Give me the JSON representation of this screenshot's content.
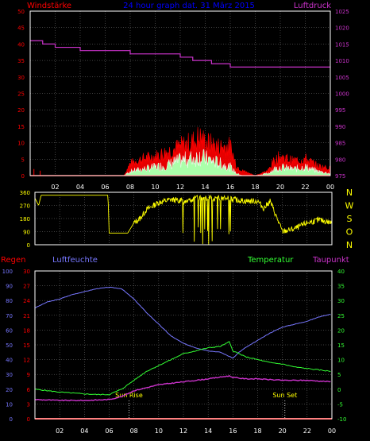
{
  "colors": {
    "background": "#000000",
    "frame": "#ffffff",
    "grid": "#808080",
    "wind": "#ff0000",
    "gust": "#ffffff",
    "wind_avg": "#aaffaa",
    "pressure": "#cc33cc",
    "direction": "#ffff00",
    "rain": "#ff0000",
    "humidity": "#7777ff",
    "temperature": "#33ff33",
    "dewpoint": "#cc33cc",
    "title": "#0000ff",
    "marker": "#ffff00"
  },
  "chart_data": [
    {
      "panel": "wind-pressure",
      "type": "line",
      "title": "24 hour graph dat. 31 März 2015",
      "left_label": "Windstärke",
      "right_label": "Luftdruck",
      "x_ticks": [
        "02",
        "04",
        "06",
        "08",
        "10",
        "12",
        "14",
        "16",
        "18",
        "20",
        "22",
        "00"
      ],
      "y_left": {
        "range": [
          0,
          50
        ],
        "ticks": [
          "0",
          "5",
          "10",
          "15",
          "20",
          "25",
          "30",
          "35",
          "40",
          "45",
          "50"
        ]
      },
      "y_right": {
        "range": [
          975,
          1025
        ],
        "ticks": [
          "975",
          "980",
          "985",
          "990",
          "995",
          "1000",
          "1005",
          "1010",
          "1015",
          "1020",
          "1025"
        ]
      },
      "pressure": {
        "x": [
          0,
          1,
          2,
          4,
          6,
          8,
          10,
          12,
          13,
          14,
          14.5,
          16,
          18,
          20,
          22,
          24
        ],
        "values": [
          1016,
          1015,
          1014,
          1013,
          1013,
          1012,
          1012,
          1011,
          1010,
          1010,
          1009,
          1008,
          1008,
          1008,
          1008,
          1008
        ]
      },
      "wind_envelope": {
        "x": [
          7.5,
          8,
          9,
          10,
          11,
          12,
          13,
          13.5,
          14,
          15,
          16,
          16.5,
          17,
          18,
          19,
          19.5,
          20,
          21,
          22,
          23,
          24
        ],
        "gust": [
          0,
          5,
          7,
          8,
          10,
          12,
          14,
          16,
          14,
          12,
          12,
          4,
          2,
          0,
          2,
          6,
          8,
          6,
          7,
          4,
          3
        ],
        "average": [
          0,
          2,
          3,
          4,
          5,
          7,
          8,
          9,
          8,
          6,
          4,
          1,
          0,
          0,
          1,
          3,
          4,
          3,
          4,
          2,
          1
        ]
      }
    },
    {
      "panel": "wind-direction",
      "type": "scatter",
      "x_ticks": [
        "02",
        "04",
        "06",
        "08",
        "10",
        "12",
        "14",
        "16",
        "18",
        "20",
        "22",
        "00"
      ],
      "y_left": {
        "range": [
          0,
          360
        ],
        "ticks": [
          "0",
          "90",
          "180",
          "270",
          "360"
        ]
      },
      "right_labels": [
        "N",
        "W",
        "S",
        "O",
        "N"
      ],
      "direction": {
        "x": [
          0,
          0.3,
          0.5,
          1,
          4,
          5.9,
          6,
          7.5,
          8,
          8.5,
          9,
          10,
          11,
          12,
          13,
          14,
          15,
          16,
          17,
          18,
          18.5,
          19,
          20,
          21,
          22,
          23,
          24
        ],
        "values": [
          320,
          270,
          340,
          340,
          340,
          340,
          80,
          80,
          150,
          180,
          240,
          290,
          310,
          300,
          320,
          320,
          320,
          310,
          300,
          300,
          250,
          300,
          90,
          110,
          150,
          170,
          150
        ]
      }
    },
    {
      "panel": "temp-humidity",
      "type": "line",
      "labels": {
        "rain": "Regen",
        "humidity": "Luftfeuchte",
        "temperature": "Temperatur",
        "dewpoint": "Taupunkt"
      },
      "x_ticks": [
        "02",
        "04",
        "06",
        "08",
        "10",
        "12",
        "14",
        "16",
        "18",
        "20",
        "22",
        "00"
      ],
      "y_humidity": {
        "range": [
          0,
          100
        ],
        "ticks": [
          "0",
          "10",
          "20",
          "30",
          "40",
          "50",
          "60",
          "70",
          "80",
          "90",
          "100"
        ]
      },
      "y_rain": {
        "range": [
          0,
          30
        ],
        "ticks": [
          "0",
          "3",
          "6",
          "9",
          "12",
          "15",
          "18",
          "21",
          "24",
          "27",
          "30"
        ]
      },
      "y_temperature": {
        "range": [
          -10,
          40
        ],
        "ticks": [
          "-10",
          "-5",
          "0",
          "5",
          "10",
          "15",
          "20",
          "25",
          "30",
          "35",
          "40"
        ]
      },
      "humidity": {
        "x": [
          0,
          1,
          2,
          3,
          4,
          5,
          6,
          7,
          8,
          9,
          10,
          11,
          12,
          13,
          14,
          15,
          16,
          16.5,
          17,
          18,
          19,
          20,
          21,
          22,
          23,
          24
        ],
        "values": [
          75,
          79,
          81,
          84,
          86,
          88,
          89,
          88,
          81,
          72,
          64,
          56,
          51,
          48,
          46,
          45,
          41,
          45,
          48,
          53,
          58,
          62,
          64,
          66,
          69,
          71
        ]
      },
      "temperature": {
        "x": [
          0,
          1,
          2,
          3,
          4,
          5,
          6,
          7,
          8,
          9,
          10,
          11,
          12,
          13,
          14,
          15,
          15.7,
          16,
          17,
          18,
          19,
          20,
          21,
          22,
          23,
          24
        ],
        "values": [
          0,
          -0.5,
          -1,
          -1.3,
          -1.6,
          -1.8,
          -1.8,
          0,
          3,
          6,
          8,
          10,
          12,
          13,
          14,
          14.5,
          16,
          13,
          11,
          10,
          9,
          8.5,
          7.5,
          7,
          6.5,
          6
        ]
      },
      "dewpoint": {
        "x": [
          0,
          2,
          4,
          6,
          7,
          8,
          9,
          10,
          12,
          14,
          15.7,
          16,
          17,
          18,
          20,
          22,
          24
        ],
        "values": [
          -3.5,
          -3.8,
          -3.8,
          -3.5,
          -2.5,
          -0.5,
          0.5,
          1.5,
          2.5,
          3.5,
          4.5,
          4,
          3.5,
          3.5,
          3,
          3,
          2.5
        ]
      },
      "rain": {
        "x": [
          0,
          24
        ],
        "values": [
          0,
          0
        ]
      },
      "markers": [
        {
          "label": "Sun Rise",
          "x": 7.6
        },
        {
          "label": "Sun Set",
          "x": 20.2
        }
      ]
    }
  ]
}
